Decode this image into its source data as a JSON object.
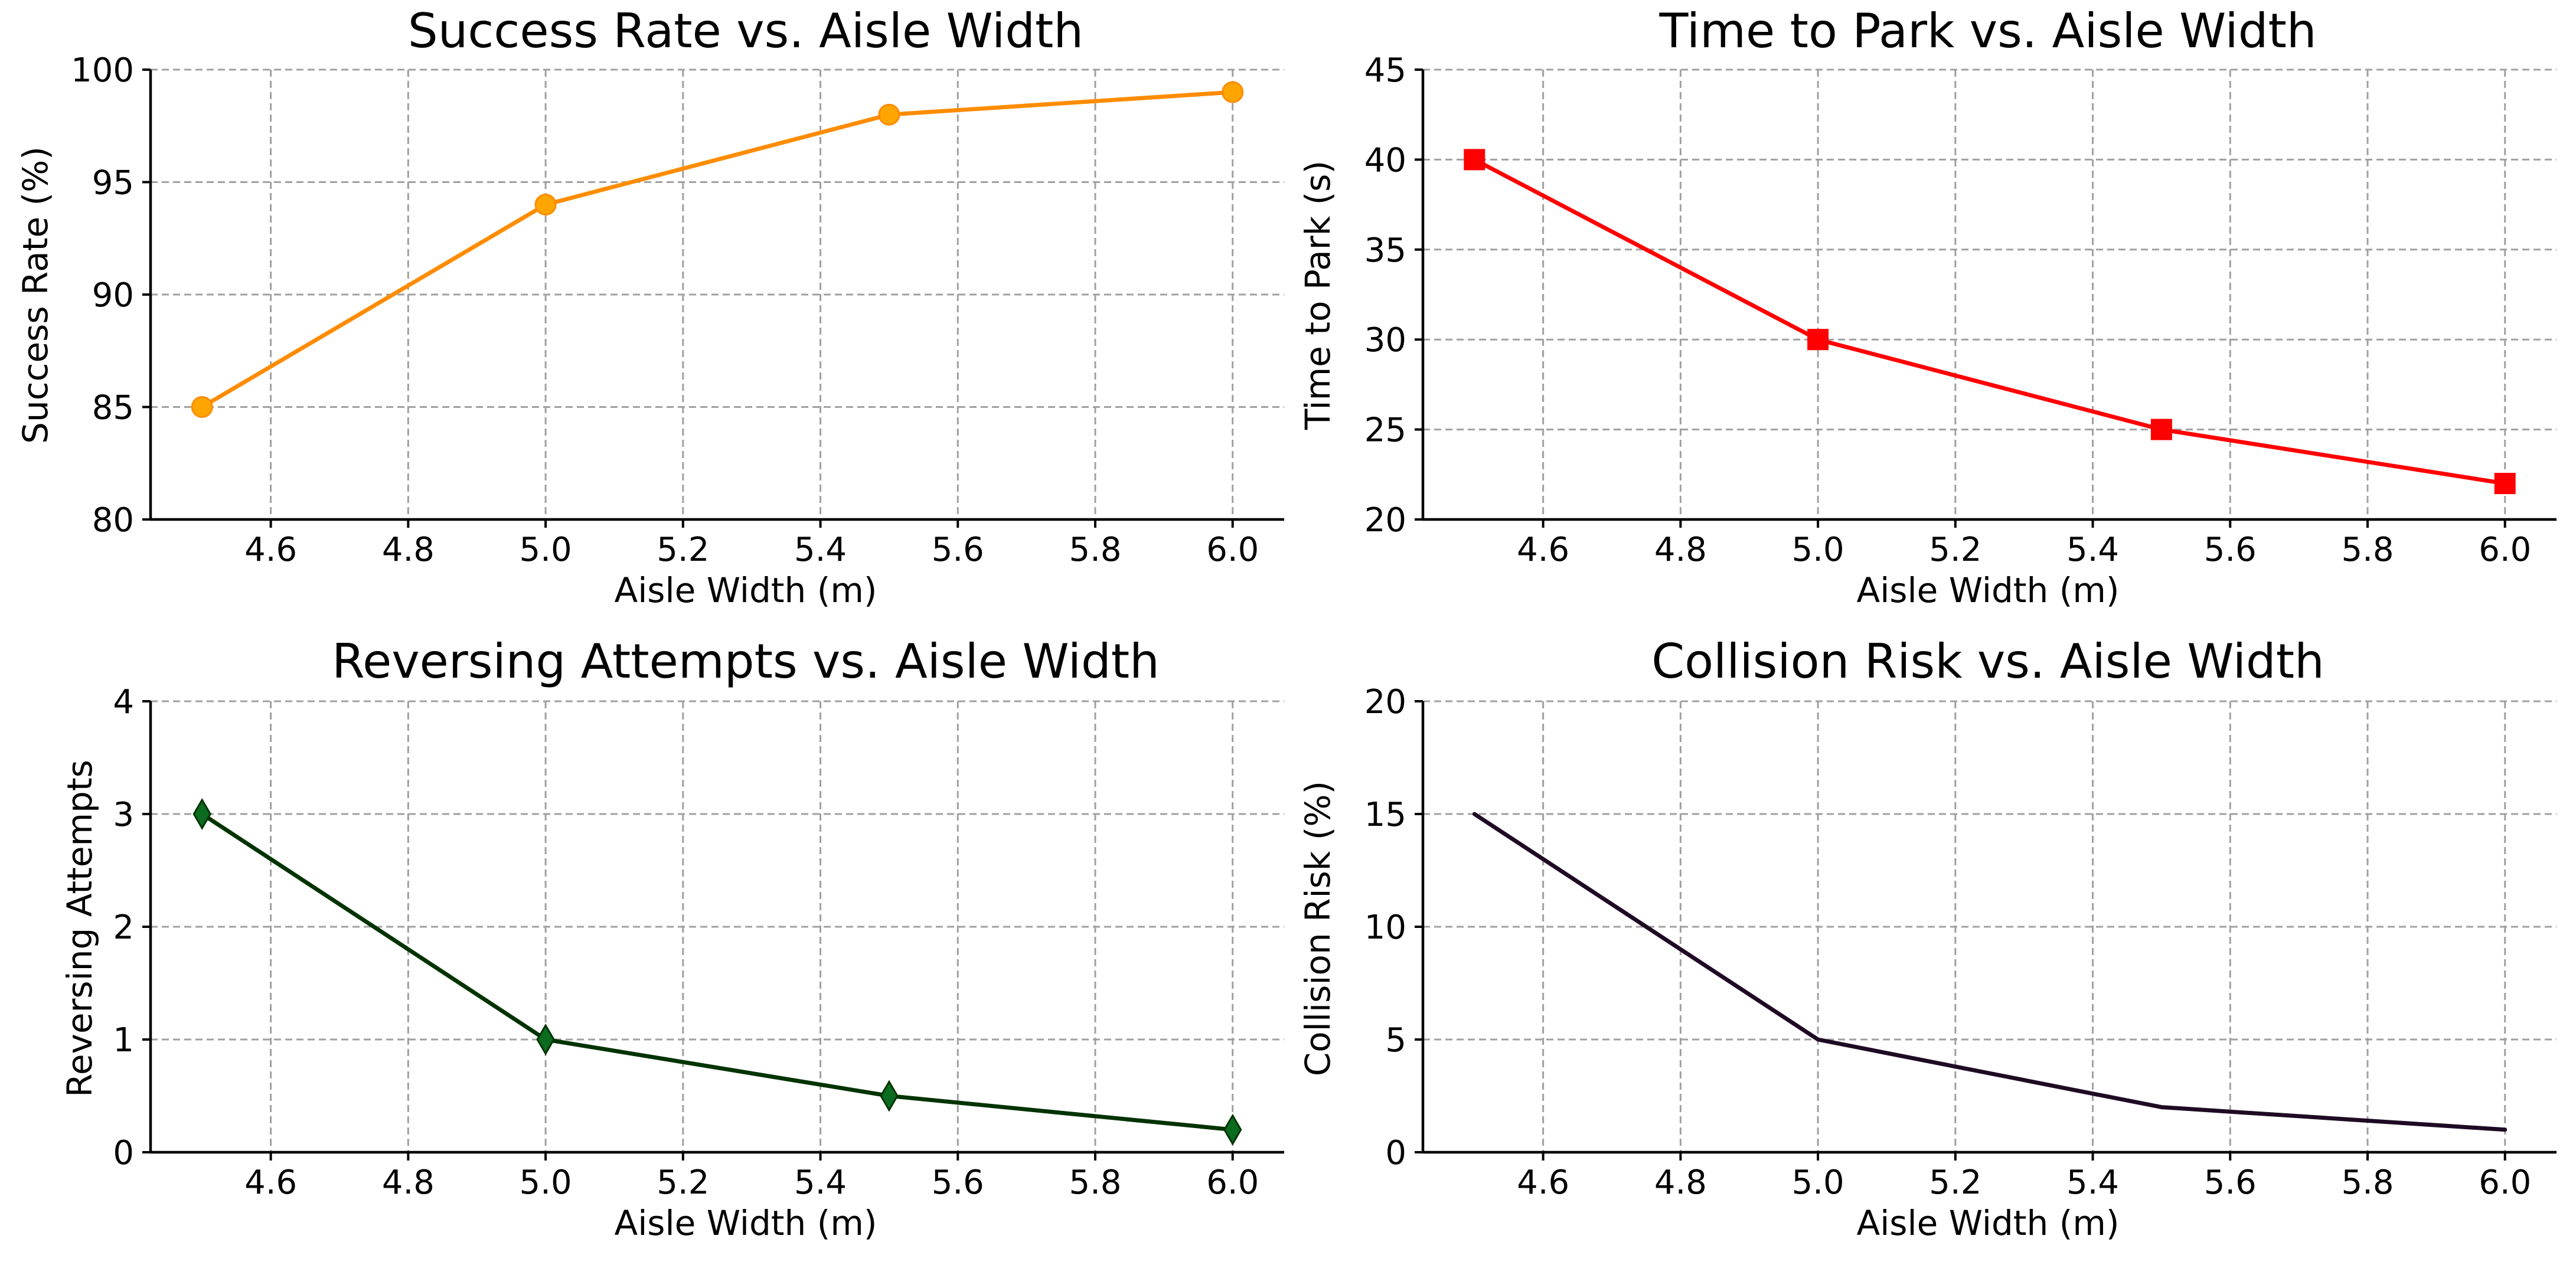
{
  "chart_data": [
    {
      "type": "line",
      "title": "Success Rate vs. Aisle Width",
      "xlabel": "Aisle Width (m)",
      "ylabel": "Success Rate (%)",
      "x": [
        4.5,
        5.0,
        5.5,
        6.0
      ],
      "series": [
        {
          "name": "Success Rate",
          "values": [
            85,
            94,
            98,
            99
          ]
        }
      ],
      "xticks": [
        "4.6",
        "4.8",
        "5.0",
        "5.2",
        "5.4",
        "5.6",
        "5.8",
        "6.0"
      ],
      "yticks": [
        "80",
        "85",
        "90",
        "95",
        "100"
      ],
      "xlim": [
        4.425,
        6.075
      ],
      "ylim": [
        80,
        100
      ],
      "grid": true,
      "color": "#ff8c00",
      "marker": "circle",
      "marker_fill": "#ffa500"
    },
    {
      "type": "line",
      "title": "Time to Park vs. Aisle Width",
      "xlabel": "Aisle Width (m)",
      "ylabel": "Time to Park (s)",
      "x": [
        4.5,
        5.0,
        5.5,
        6.0
      ],
      "series": [
        {
          "name": "Time to Park",
          "values": [
            40,
            30,
            25,
            22
          ]
        }
      ],
      "xticks": [
        "4.6",
        "4.8",
        "5.0",
        "5.2",
        "5.4",
        "5.6",
        "5.8",
        "6.0"
      ],
      "yticks": [
        "20",
        "25",
        "30",
        "35",
        "40",
        "45"
      ],
      "xlim": [
        4.425,
        6.075
      ],
      "ylim": [
        20,
        45
      ],
      "grid": true,
      "color": "#ff0000",
      "marker": "square",
      "marker_fill": "#ff0000"
    },
    {
      "type": "line",
      "title": "Reversing Attempts vs. Aisle Width",
      "xlabel": "Aisle Width (m)",
      "ylabel": "Reversing Attempts",
      "x": [
        4.5,
        5.0,
        5.5,
        6.0
      ],
      "series": [
        {
          "name": "Reversing Attempts",
          "values": [
            3,
            1,
            0.5,
            0.2
          ]
        }
      ],
      "xticks": [
        "4.6",
        "4.8",
        "5.0",
        "5.2",
        "5.4",
        "5.6",
        "5.8",
        "6.0"
      ],
      "yticks": [
        "0",
        "1",
        "2",
        "3",
        "4"
      ],
      "xlim": [
        4.425,
        6.075
      ],
      "ylim": [
        0,
        4
      ],
      "grid": true,
      "color": "#003300",
      "marker": "diamond",
      "marker_fill": "#0b6b1f"
    },
    {
      "type": "line",
      "title": "Collision Risk vs. Aisle Width",
      "xlabel": "Aisle Width (m)",
      "ylabel": "Collision Risk (%)",
      "x": [
        4.5,
        5.0,
        5.5,
        6.0
      ],
      "series": [
        {
          "name": "Collision Risk",
          "values": [
            15,
            5,
            2,
            1
          ]
        }
      ],
      "xticks": [
        "4.6",
        "4.8",
        "5.0",
        "5.2",
        "5.4",
        "5.6",
        "5.8",
        "6.0"
      ],
      "yticks": [
        "0",
        "5",
        "10",
        "15",
        "20"
      ],
      "xlim": [
        4.425,
        6.075
      ],
      "ylim": [
        0,
        20
      ],
      "grid": true,
      "color": "#1f0a24",
      "marker": "none",
      "marker_fill": "#1f0a24"
    }
  ]
}
